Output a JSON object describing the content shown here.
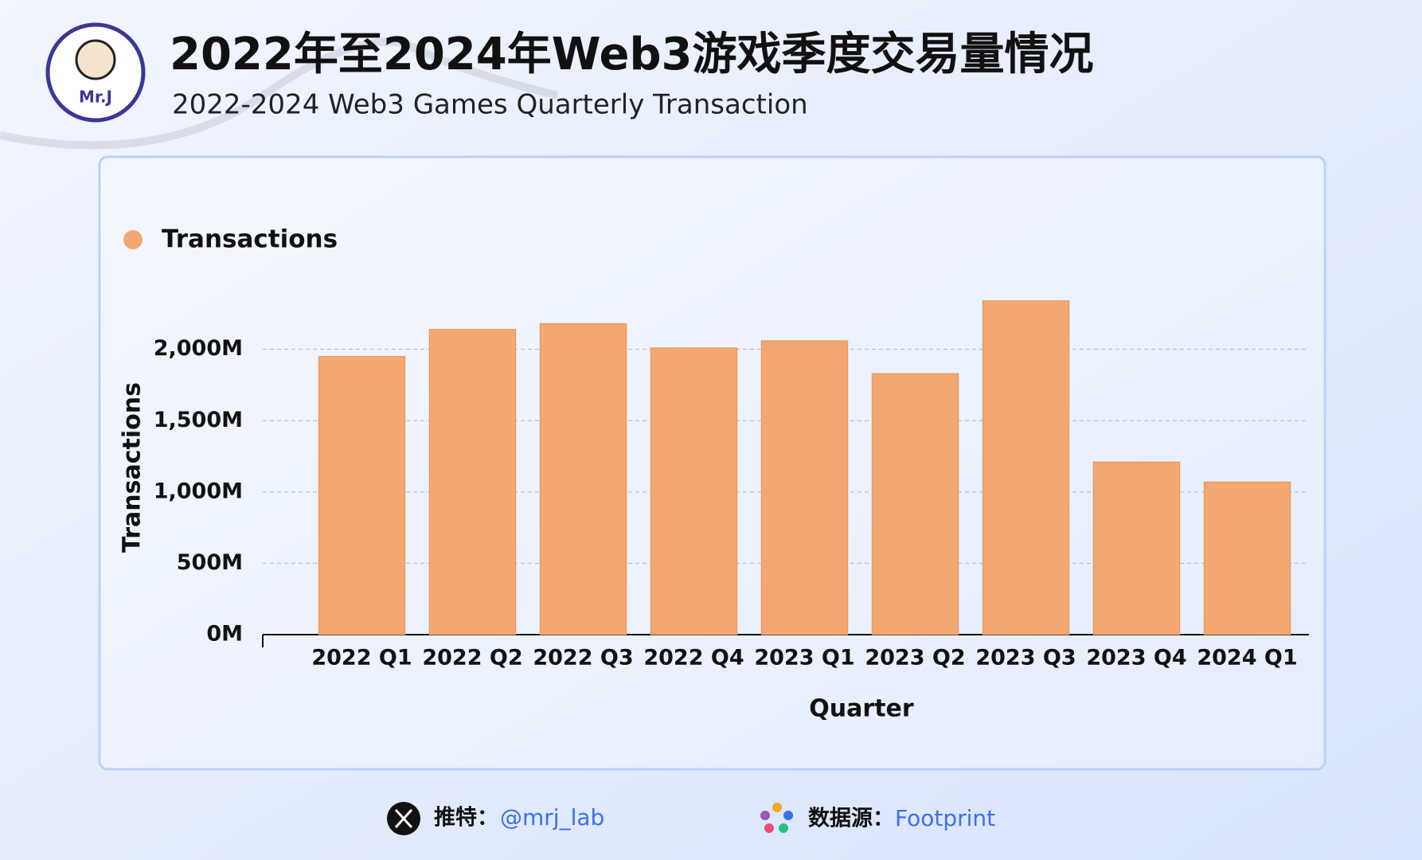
{
  "chart_data": {
    "type": "bar",
    "title": "2022年至2024年Web3游戏季度交易量情况",
    "subtitle": "2022-2024 Web3 Games Quarterly Transaction",
    "logo_text": "Mr.J",
    "x_label": "Quarter",
    "y_label": "Transactions",
    "categories": [
      "2022 Q1",
      "2022 Q2",
      "2022 Q3",
      "2022 Q4",
      "2023 Q1",
      "2023 Q2",
      "2023 Q3",
      "2023 Q4",
      "2024 Q1"
    ],
    "series": [
      {
        "name": "Transactions",
        "color": "#f2a870",
        "values": [
          1950,
          2140,
          2180,
          2010,
          2060,
          1830,
          2340,
          1210,
          1070
        ]
      }
    ],
    "ylim": [
      0,
      2400
    ],
    "yticks": [
      {
        "value": 0,
        "label": "0M"
      },
      {
        "value": 500,
        "label": "500M"
      },
      {
        "value": 1000,
        "label": "1,000M"
      },
      {
        "value": 1500,
        "label": "1,500M"
      },
      {
        "value": 2000,
        "label": "2,000M"
      }
    ],
    "grid": true,
    "legend": "top-left",
    "footer": {
      "twitter_label": "推特：",
      "twitter_handle": "@mrj_lab",
      "source_label": "数据源：",
      "source_name": "Footprint"
    }
  }
}
